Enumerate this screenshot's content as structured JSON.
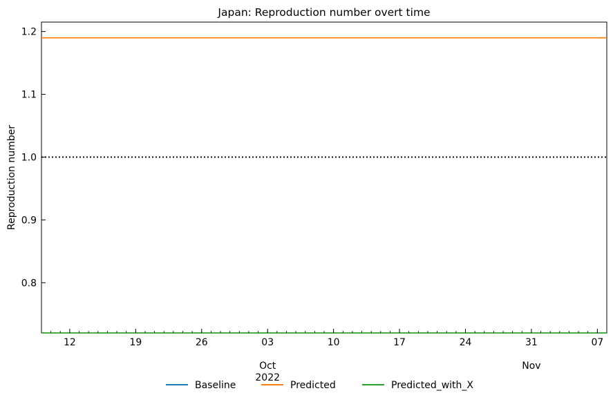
{
  "chart_data": {
    "type": "line",
    "title": "Japan: Reproduction number overt time",
    "xlabel": "",
    "ylabel": "Reproduction number",
    "xlim": [
      "2022-09-09",
      "2022-11-08"
    ],
    "ylim": [
      0.72,
      1.215
    ],
    "x_major_ticks": [
      {
        "date": "2022-09-12",
        "label": "12"
      },
      {
        "date": "2022-09-19",
        "label": "19"
      },
      {
        "date": "2022-09-26",
        "label": "26"
      },
      {
        "date": "2022-10-03",
        "label": "03"
      },
      {
        "date": "2022-10-10",
        "label": "10"
      },
      {
        "date": "2022-10-17",
        "label": "17"
      },
      {
        "date": "2022-10-24",
        "label": "24"
      },
      {
        "date": "2022-10-31",
        "label": "31"
      },
      {
        "date": "2022-11-07",
        "label": "07"
      }
    ],
    "x_month_labels": [
      {
        "date": "2022-10-03",
        "label": "Oct"
      },
      {
        "date": "2022-10-31",
        "label": "Nov"
      }
    ],
    "x_year_label": {
      "date": "2022-10-03",
      "label": "2022"
    },
    "y_ticks": [
      {
        "value": 0.8,
        "label": "0.8"
      },
      {
        "value": 0.9,
        "label": "0.9"
      },
      {
        "value": 1.0,
        "label": "1.0"
      },
      {
        "value": 1.1,
        "label": "1.1"
      },
      {
        "value": 1.2,
        "label": "1.2"
      }
    ],
    "reference_line": {
      "value": 1.0,
      "style": "dotted",
      "color": "#000000"
    },
    "series": [
      {
        "name": "Baseline",
        "color": "#1f77b4",
        "x": [
          "2022-09-09",
          "2022-11-08"
        ],
        "values": [
          null,
          null
        ]
      },
      {
        "name": "Predicted",
        "color": "#ff7f0e",
        "x": [
          "2022-09-09",
          "2022-11-08"
        ],
        "values": [
          1.19,
          1.19
        ]
      },
      {
        "name": "Predicted_with_X",
        "color": "#2ca02c",
        "x": [
          "2022-09-09",
          "2022-11-08"
        ],
        "values": [
          0.72,
          0.72
        ]
      }
    ],
    "grid": false,
    "legend_position": "bottom-center"
  }
}
